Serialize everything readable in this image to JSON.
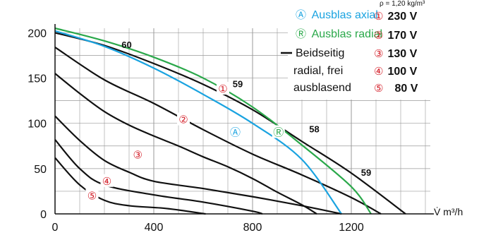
{
  "chart_data": {
    "type": "line",
    "title": "",
    "xlabel": "V̇ m³/h",
    "ylabel": "",
    "xlim": [
      0,
      1520
    ],
    "ylim": [
      0,
      205
    ],
    "x_ticks": [
      "0",
      "400",
      "800",
      "1200"
    ],
    "y_ticks": [
      "0",
      "50",
      "100",
      "150",
      "200"
    ],
    "density_note": "ρ = 1,20 kg/m³",
    "colors": {
      "axial": "#1aa3e0",
      "radial": "#2aa84a",
      "free": "#111111",
      "marker": "#d4202a"
    },
    "legend": {
      "axial": {
        "symbol": "Ⓐ",
        "label": "Ausblas axial"
      },
      "radial": {
        "symbol": "Ⓡ",
        "label": "Ausblas radial"
      },
      "free": {
        "label_lines": [
          "Beidseitig",
          "radial, frei",
          "ausblasend"
        ]
      }
    },
    "speeds": [
      {
        "symbol": "①",
        "label": "230 V"
      },
      {
        "symbol": "②",
        "label": "170 V"
      },
      {
        "symbol": "③",
        "label": "130 V"
      },
      {
        "symbol": "④",
        "label": "100 V"
      },
      {
        "symbol": "⑤",
        "label": "80 V"
      }
    ],
    "series": [
      {
        "style": "free",
        "points": [
          [
            0,
            200
          ],
          [
            200,
            186
          ],
          [
            400,
            166
          ],
          [
            600,
            143
          ],
          [
            800,
            115
          ],
          [
            1000,
            80
          ],
          [
            1200,
            45
          ],
          [
            1420,
            0
          ]
        ]
      },
      {
        "style": "free",
        "points": [
          [
            0,
            184
          ],
          [
            200,
            148
          ],
          [
            400,
            122
          ],
          [
            600,
            93
          ],
          [
            800,
            66
          ],
          [
            1000,
            43
          ],
          [
            1200,
            18
          ],
          [
            1320,
            0
          ]
        ]
      },
      {
        "style": "free",
        "points": [
          [
            0,
            155
          ],
          [
            100,
            133
          ],
          [
            200,
            113
          ],
          [
            300,
            98
          ],
          [
            400,
            86
          ],
          [
            500,
            75
          ],
          [
            600,
            63
          ],
          [
            700,
            52
          ],
          [
            800,
            39
          ],
          [
            900,
            24
          ],
          [
            1000,
            10
          ],
          [
            1060,
            0
          ]
        ]
      },
      {
        "style": "free",
        "points": [
          [
            0,
            108
          ],
          [
            100,
            81
          ],
          [
            200,
            59
          ],
          [
            300,
            46
          ],
          [
            400,
            36
          ],
          [
            600,
            28
          ],
          [
            800,
            19
          ],
          [
            1000,
            9
          ],
          [
            1160,
            0
          ]
        ]
      },
      {
        "style": "free",
        "points": [
          [
            0,
            82
          ],
          [
            100,
            50
          ],
          [
            200,
            32
          ],
          [
            400,
            21
          ],
          [
            600,
            13
          ],
          [
            800,
            3
          ],
          [
            840,
            0
          ]
        ]
      },
      {
        "style": "free",
        "points": [
          [
            0,
            62
          ],
          [
            100,
            32
          ],
          [
            200,
            15
          ],
          [
            300,
            9
          ],
          [
            450,
            6
          ],
          [
            610,
            0
          ]
        ]
      },
      {
        "style": "axial",
        "points": [
          [
            0,
            202
          ],
          [
            200,
            185
          ],
          [
            400,
            161
          ],
          [
            600,
            132
          ],
          [
            800,
            100
          ],
          [
            1000,
            60
          ],
          [
            1160,
            0
          ]
        ]
      },
      {
        "style": "radial",
        "points": [
          [
            0,
            205
          ],
          [
            200,
            191
          ],
          [
            400,
            173
          ],
          [
            600,
            150
          ],
          [
            800,
            118
          ],
          [
            1000,
            76
          ],
          [
            1200,
            30
          ],
          [
            1280,
            0
          ]
        ]
      }
    ],
    "curve_labels": [
      {
        "text": "60",
        "x": 290,
        "y": 183
      },
      {
        "text": "59",
        "x": 740,
        "y": 140
      },
      {
        "text": "58",
        "x": 1050,
        "y": 90
      },
      {
        "text": "59",
        "x": 1260,
        "y": 42
      }
    ],
    "curve_markers": [
      {
        "text": "①",
        "x": 680,
        "y": 138,
        "color": "marker"
      },
      {
        "text": "②",
        "x": 520,
        "y": 104,
        "color": "marker"
      },
      {
        "text": "③",
        "x": 335,
        "y": 65,
        "color": "marker"
      },
      {
        "text": "④",
        "x": 210,
        "y": 36,
        "color": "marker"
      },
      {
        "text": "⑤",
        "x": 150,
        "y": 20,
        "color": "marker"
      },
      {
        "text": "Ⓐ",
        "x": 730,
        "y": 90,
        "color": "axial"
      },
      {
        "text": "Ⓡ",
        "x": 905,
        "y": 90,
        "color": "radial"
      }
    ]
  }
}
